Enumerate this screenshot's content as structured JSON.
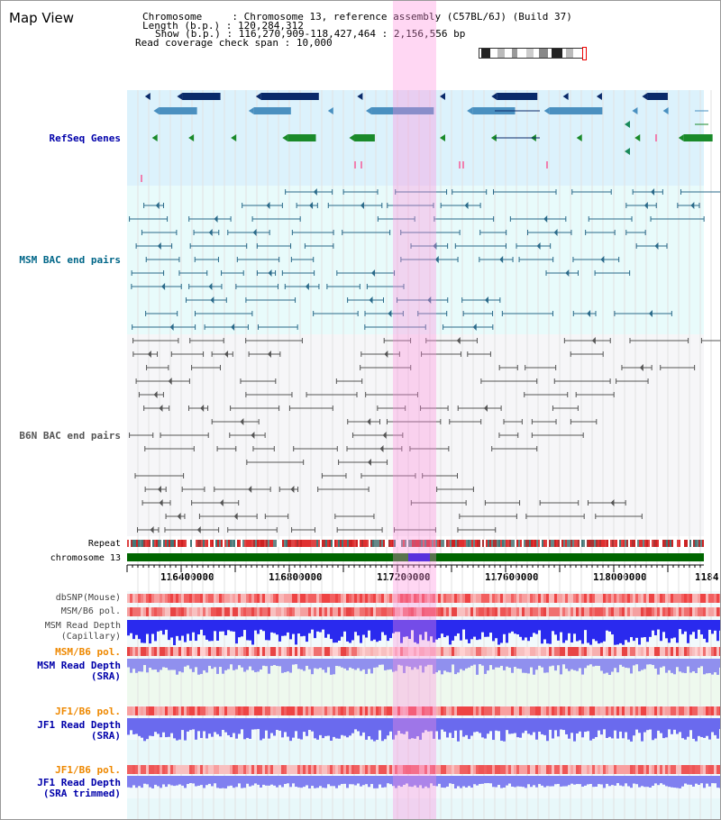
{
  "title": "Map View",
  "info": {
    "chromosome_key": "Chromosome",
    "chromosome_val": "Chromosome 13, reference assembly (C57BL/6J) (Build 37)",
    "length_key": "Length (b.p.)",
    "length_val": "120,284,312",
    "show_key": "Show (b.p.)",
    "show_val": "116,270,909-118,427,464 : 2,156,556 bp",
    "span_key": "Read coverage check span",
    "span_val": "10,000"
  },
  "tracks": {
    "refseq": "RefSeq Genes",
    "msm_bac": "MSM BAC end pairs",
    "b6n_bac": "B6N BAC end pairs",
    "repeat": "Repeat",
    "chromosome": "chromosome 13",
    "dbsnp": "dbSNP(Mouse)",
    "msm_b6_pol_1": "MSM/B6 pol.",
    "msm_depth_cap_1": "MSM Read Depth",
    "msm_depth_cap_2": "(Capillary)",
    "msm_b6_pol_2": "MSM/B6 pol.",
    "msm_depth_sra_1": "MSM Read Depth",
    "msm_depth_sra_2": "(SRA)",
    "jf1_b6_pol_1": "JF1/B6 pol.",
    "jf1_depth_sra_1": "JF1 Read Depth",
    "jf1_depth_sra_2": "(SRA)",
    "jf1_b6_pol_2": "JF1/B6 pol.",
    "jf1_depth_trim_1": "JF1 Read Depth",
    "jf1_depth_trim_2": "(SRA trimmed)"
  },
  "axis_ticks": [
    "116400000",
    "116800000",
    "117200000",
    "117600000",
    "118000000",
    "1184"
  ],
  "colors": {
    "refseq_label": "#0000aa",
    "msm_label": "#006688",
    "b6n_label": "#555555",
    "orange_label": "#ee8800",
    "blue_label": "#0000aa",
    "highlight": "#ff8cdc",
    "chromosome_bar": "#006600"
  }
}
